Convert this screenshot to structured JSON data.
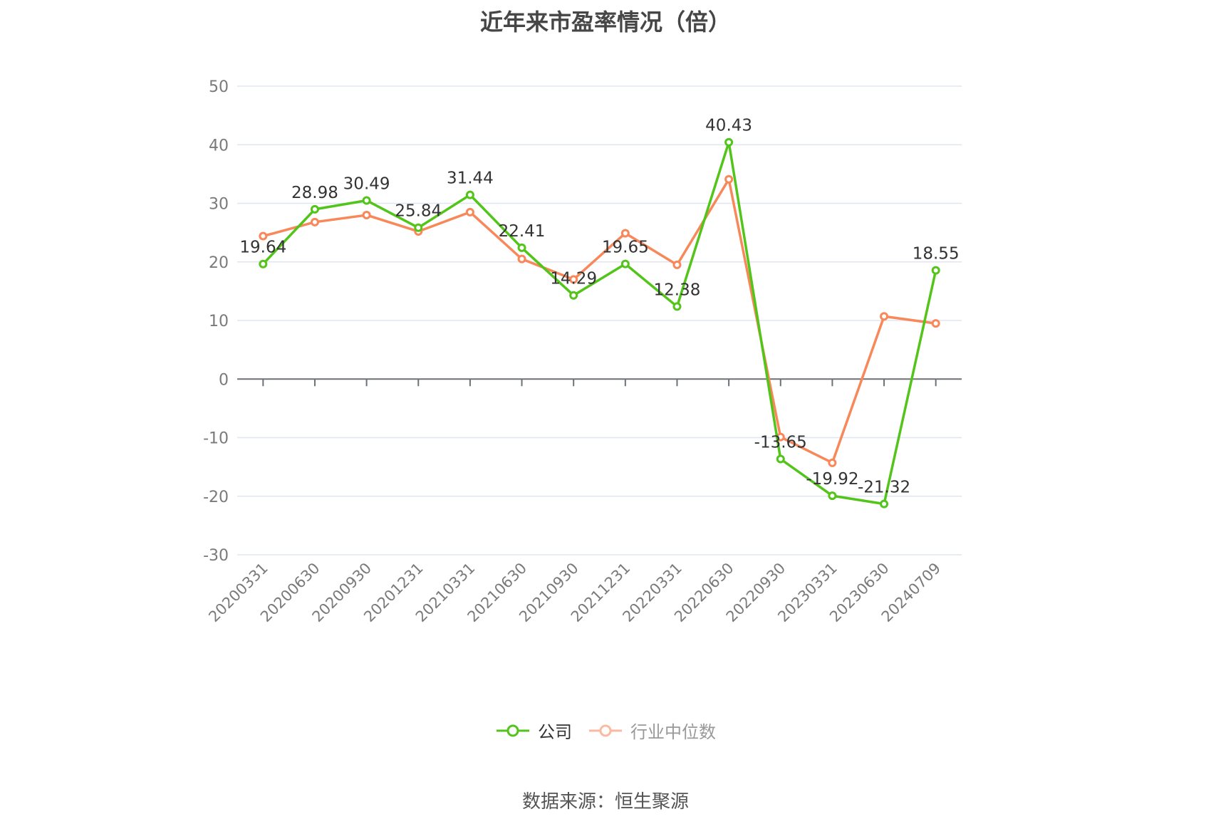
{
  "title": "近年来市盈率情况（倍）",
  "source": "数据来源：恒生聚源",
  "legend": [
    {
      "label": "公司",
      "color": "#52c41a",
      "active": true
    },
    {
      "label": "行业中位数",
      "color": "#fc8452",
      "active": false
    }
  ],
  "colors": {
    "company": "#52c41a",
    "industry": "#f8875a",
    "grid": "#e0e6f1",
    "axis": "#6e7079",
    "tick_label": "#7a7a7a",
    "data_label": "#333333"
  },
  "chart_data": {
    "type": "line",
    "title": "近年来市盈率情况（倍）",
    "xlabel": "",
    "ylabel": "",
    "ylim": [
      -30,
      50
    ],
    "yticks": [
      50,
      40,
      30,
      20,
      10,
      0,
      -10,
      -20,
      -30
    ],
    "grid": true,
    "legend_position": "bottom",
    "categories": [
      "20200331",
      "20200630",
      "20200930",
      "20201231",
      "20210331",
      "20210630",
      "20210930",
      "20211231",
      "20220331",
      "20220630",
      "20220930",
      "20230331",
      "20230630",
      "20240709"
    ],
    "series": [
      {
        "name": "公司",
        "values": [
          19.64,
          28.98,
          30.49,
          25.84,
          31.44,
          22.41,
          14.29,
          19.65,
          12.38,
          40.43,
          -13.65,
          -19.92,
          -21.32,
          18.55
        ],
        "labels_shown": true
      },
      {
        "name": "行业中位数",
        "values": [
          24.4,
          26.8,
          28.0,
          25.2,
          28.5,
          20.5,
          17.0,
          24.9,
          19.5,
          34.1,
          -9.9,
          -14.3,
          10.7,
          9.5
        ],
        "labels_shown": false
      }
    ]
  }
}
